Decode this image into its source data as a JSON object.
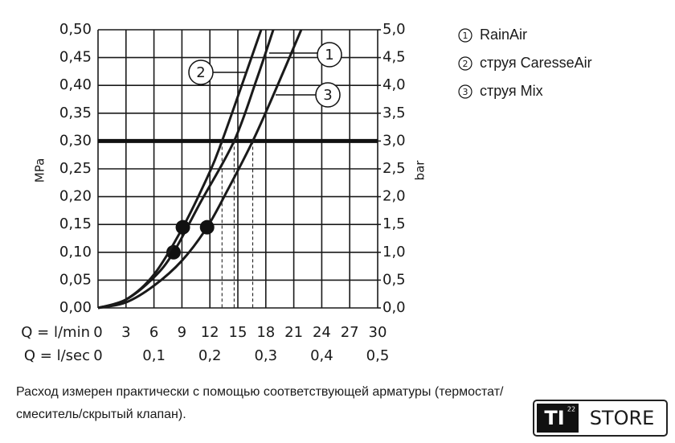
{
  "chart_data": {
    "type": "line",
    "y_label": "MPa",
    "y2_label": "bar",
    "x_label": "Q = l/min",
    "x2_label": "Q = l/sec",
    "xlim": [
      0,
      30
    ],
    "xticks": [
      0,
      3,
      6,
      9,
      12,
      15,
      18,
      21,
      24,
      27,
      30
    ],
    "x2lim": [
      0,
      0.5
    ],
    "x2ticks": [
      0,
      {
        "value": 0.1,
        "label": "0,1"
      },
      {
        "value": 0.2,
        "label": "0,2"
      },
      {
        "value": 0.3,
        "label": "0,3"
      },
      {
        "value": 0.4,
        "label": "0,4"
      },
      {
        "value": 0.5,
        "label": "0,5"
      }
    ],
    "ylim": [
      0,
      0.5
    ],
    "yticks": [
      {
        "value": 0,
        "label": "0,00"
      },
      {
        "value": 0.05,
        "label": "0,05"
      },
      {
        "value": 0.1,
        "label": "0,10"
      },
      {
        "value": 0.15,
        "label": "0,15"
      },
      {
        "value": 0.2,
        "label": "0,20"
      },
      {
        "value": 0.25,
        "label": "0,25"
      },
      {
        "value": 0.3,
        "label": "0,30"
      },
      {
        "value": 0.35,
        "label": "0,35"
      },
      {
        "value": 0.4,
        "label": "0,40"
      },
      {
        "value": 0.45,
        "label": "0,45"
      },
      {
        "value": 0.5,
        "label": "0,50"
      }
    ],
    "y2lim": [
      0,
      5
    ],
    "y2ticks": [
      {
        "value": 0,
        "label": "0,0"
      },
      {
        "value": 0.5,
        "label": "0,5"
      },
      {
        "value": 1,
        "label": "1,0"
      },
      {
        "value": 1.5,
        "label": "1,5"
      },
      {
        "value": 2,
        "label": "2,0"
      },
      {
        "value": 2.5,
        "label": "2,5"
      },
      {
        "value": 3,
        "label": "3,0"
      },
      {
        "value": 3.5,
        "label": "3,5"
      },
      {
        "value": 4,
        "label": "4,0"
      },
      {
        "value": 4.5,
        "label": "4,5"
      },
      {
        "value": 5,
        "label": "5,0"
      }
    ],
    "grid": true,
    "hline": 0.3,
    "drops": [
      13.3,
      14.6,
      16.6
    ],
    "series": [
      {
        "label": "1",
        "name": "RainAir",
        "color": "#1a1a1a",
        "marked_point": 3,
        "x": [
          0,
          3,
          6,
          8.1,
          11,
          14.6,
          17,
          18.8
        ],
        "values": [
          0,
          0.015,
          0.055,
          0.1,
          0.19,
          0.3,
          0.41,
          0.5
        ]
      },
      {
        "label": "2",
        "name": "струя CaresseAir",
        "color": "#1a1a1a",
        "marked_point": 3,
        "x": [
          0,
          3,
          6,
          9.1,
          12,
          13.3,
          15,
          17.5
        ],
        "values": [
          0,
          0.015,
          0.06,
          0.145,
          0.245,
          0.3,
          0.38,
          0.5
        ]
      },
      {
        "label": "3",
        "name": "струя Mix",
        "color": "#1a1a1a",
        "marked_point": 4,
        "x": [
          0,
          3,
          6,
          9,
          11.7,
          14,
          16.6,
          19,
          21.8
        ],
        "values": [
          0,
          0.01,
          0.04,
          0.085,
          0.145,
          0.215,
          0.3,
          0.39,
          0.5
        ]
      }
    ],
    "note_lines": [
      "Расход измерен практически с помощью соответствующей арматуры (термостат/",
      "смеситель/скрытый клапан)."
    ]
  },
  "badge": {
    "mark": "TI",
    "sup": "22",
    "text": "STORE"
  }
}
